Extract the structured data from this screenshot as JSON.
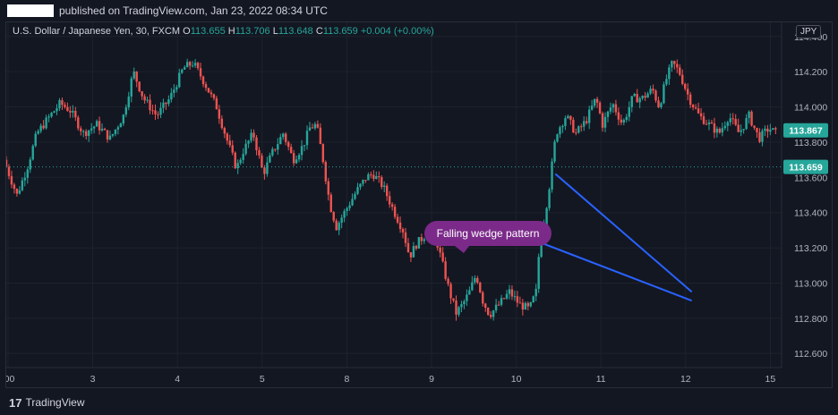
{
  "header": {
    "published_text": "published on TradingView.com, Jan 23, 2022 08:34 UTC"
  },
  "legend": {
    "symbol": "U.S. Dollar / Japanese Yen, 30, FXCM",
    "o_label": "O",
    "o_value": "113.655",
    "h_label": "H",
    "h_value": "113.706",
    "l_label": "L",
    "l_value": "113.648",
    "c_label": "C",
    "c_value": "113.659",
    "change": "+0.004 (+0.00%)"
  },
  "currency_badge": "JPY",
  "footer": {
    "logo_mark": "17",
    "brand": "TradingView"
  },
  "colors": {
    "background": "#131722",
    "grid": "#1e222d",
    "up": "#26a69a",
    "down": "#ef5350",
    "wedge_line": "#2962ff",
    "annotation_bg": "#7b2a8a",
    "tag": "#26a69a"
  },
  "chart_data": {
    "type": "candlestick",
    "symbol": "USDJPY",
    "timeframe": "30",
    "y_ticks": [
      "112.600",
      "112.800",
      "113.000",
      "113.200",
      "113.400",
      "113.600",
      "113.800",
      "114.000",
      "114.200",
      "114.400"
    ],
    "y_range": [
      112.52,
      114.48
    ],
    "x_ticks": [
      ":00",
      "3",
      "4",
      "5",
      "8",
      "9",
      "10",
      "11",
      "12",
      "15"
    ],
    "price_tags": [
      {
        "label": "113.867",
        "value": 113.867
      },
      {
        "label": "113.659",
        "value": 113.659
      }
    ],
    "current_price_line": 113.659,
    "annotation": {
      "text": "Falling wedge pattern"
    },
    "wedge": {
      "upper_line": [
        [
          8.25,
          113.62
        ],
        [
          10.3,
          112.95
        ]
      ],
      "lower_line": [
        [
          7.75,
          113.27
        ],
        [
          10.3,
          112.9
        ]
      ]
    },
    "path_points": [
      [
        0.0,
        113.7
      ],
      [
        0.2,
        113.5
      ],
      [
        0.35,
        113.65
      ],
      [
        0.5,
        113.85
      ],
      [
        0.7,
        113.95
      ],
      [
        0.85,
        114.02
      ],
      [
        1.0,
        113.98
      ],
      [
        1.2,
        113.85
      ],
      [
        1.4,
        113.9
      ],
      [
        1.6,
        113.82
      ],
      [
        1.8,
        113.95
      ],
      [
        1.95,
        114.2
      ],
      [
        2.1,
        114.05
      ],
      [
        2.3,
        113.95
      ],
      [
        2.5,
        114.05
      ],
      [
        2.7,
        114.22
      ],
      [
        2.85,
        114.25
      ],
      [
        3.0,
        114.15
      ],
      [
        3.2,
        114.0
      ],
      [
        3.35,
        113.82
      ],
      [
        3.5,
        113.65
      ],
      [
        3.6,
        113.75
      ],
      [
        3.75,
        113.85
      ],
      [
        3.9,
        113.62
      ],
      [
        4.05,
        113.75
      ],
      [
        4.2,
        113.85
      ],
      [
        4.35,
        113.7
      ],
      [
        4.5,
        113.78
      ],
      [
        4.6,
        113.88
      ],
      [
        4.7,
        113.9
      ],
      [
        4.8,
        113.7
      ],
      [
        4.9,
        113.45
      ],
      [
        5.0,
        113.32
      ],
      [
        5.15,
        113.42
      ],
      [
        5.3,
        113.52
      ],
      [
        5.45,
        113.6
      ],
      [
        5.55,
        113.62
      ],
      [
        5.7,
        113.55
      ],
      [
        5.85,
        113.42
      ],
      [
        6.0,
        113.3
      ],
      [
        6.1,
        113.15
      ],
      [
        6.2,
        113.22
      ],
      [
        6.35,
        113.28
      ],
      [
        6.5,
        113.25
      ],
      [
        6.6,
        113.1
      ],
      [
        6.7,
        112.95
      ],
      [
        6.8,
        112.83
      ],
      [
        6.9,
        112.88
      ],
      [
        7.0,
        112.95
      ],
      [
        7.1,
        113.05
      ],
      [
        7.2,
        112.9
      ],
      [
        7.3,
        112.82
      ],
      [
        7.45,
        112.88
      ],
      [
        7.6,
        112.95
      ],
      [
        7.75,
        112.88
      ],
      [
        7.9,
        112.85
      ],
      [
        8.0,
        112.95
      ],
      [
        8.05,
        113.2
      ],
      [
        8.1,
        113.3
      ],
      [
        8.2,
        113.55
      ],
      [
        8.3,
        113.85
      ],
      [
        8.45,
        113.95
      ],
      [
        8.6,
        113.85
      ],
      [
        8.75,
        113.92
      ],
      [
        8.9,
        114.05
      ],
      [
        9.0,
        113.9
      ],
      [
        9.15,
        114.02
      ],
      [
        9.3,
        113.9
      ],
      [
        9.45,
        114.05
      ],
      [
        9.6,
        114.05
      ],
      [
        9.75,
        114.1
      ],
      [
        9.85,
        114.0
      ],
      [
        9.95,
        114.15
      ],
      [
        10.05,
        114.25
      ],
      [
        10.15,
        114.2
      ],
      [
        10.3,
        114.05
      ],
      [
        10.45,
        113.95
      ],
      [
        10.6,
        113.9
      ],
      [
        10.75,
        113.85
      ],
      [
        10.9,
        113.95
      ],
      [
        11.05,
        113.85
      ],
      [
        11.2,
        113.95
      ],
      [
        11.35,
        113.82
      ],
      [
        11.5,
        113.88
      ],
      [
        11.6,
        113.85
      ]
    ],
    "x_tick_positions": [
      0,
      1,
      2,
      3,
      4,
      5,
      6,
      7,
      8,
      9
    ],
    "x_range": [
      0.0,
      11.65
    ]
  }
}
